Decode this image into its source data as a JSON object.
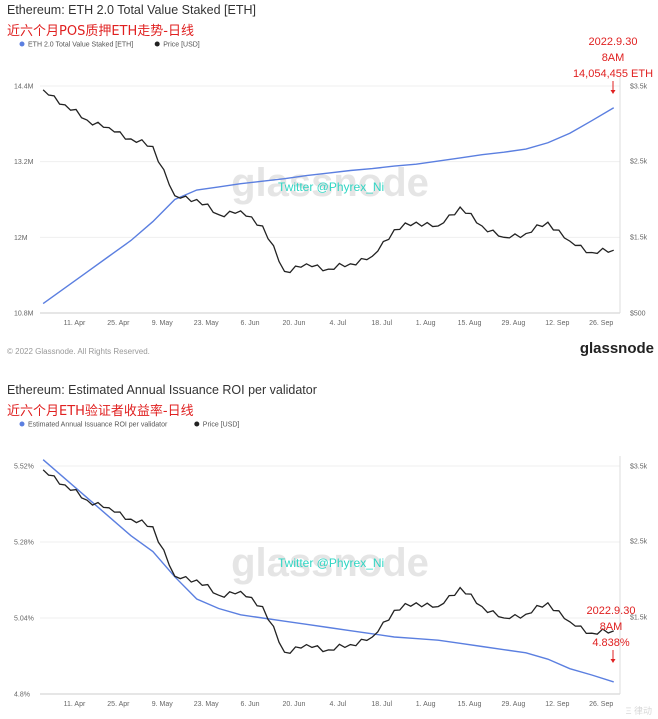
{
  "chart_data": [
    {
      "type": "line",
      "title": "Ethereum: ETH 2.0 Total Value Staked [ETH]",
      "subtitle": "近六个月POS质押ETH走势-日线",
      "x_ticks": [
        "11. Apr",
        "25. Apr",
        "9. May",
        "23. May",
        "6. Jun",
        "20. Jun",
        "4. Jul",
        "18. Jul",
        "1. Aug",
        "15. Aug",
        "29. Aug",
        "12. Sep",
        "26. Sep"
      ],
      "y_left_ticks": [
        "14.4M",
        "13.2M",
        "12M",
        "10.8M"
      ],
      "y_right_ticks": [
        "$3.5k",
        "$2.5k",
        "$1.5k",
        "$500"
      ],
      "ylim_left": [
        10800000,
        14400000
      ],
      "ylim_right": [
        500,
        3500
      ],
      "legend_position": "top-left",
      "grid": true,
      "colors": {
        "staked": "#5b7fe0",
        "price": "#222222",
        "annotation": "#e02020",
        "twitter": "#31d6c4"
      },
      "series": [
        {
          "name": "ETH 2.0 Total Value Staked [ETH]",
          "axis": "left",
          "x": [
            "2022-04-01",
            "2022-04-08",
            "2022-04-15",
            "2022-04-22",
            "2022-04-29",
            "2022-05-06",
            "2022-05-13",
            "2022-05-20",
            "2022-05-27",
            "2022-06-03",
            "2022-06-10",
            "2022-06-17",
            "2022-06-24",
            "2022-07-01",
            "2022-07-08",
            "2022-07-15",
            "2022-07-22",
            "2022-07-29",
            "2022-08-05",
            "2022-08-12",
            "2022-08-19",
            "2022-08-26",
            "2022-09-02",
            "2022-09-09",
            "2022-09-16",
            "2022-09-23",
            "2022-09-30"
          ],
          "values": [
            10950000,
            11200000,
            11450000,
            11700000,
            11950000,
            12250000,
            12600000,
            12750000,
            12800000,
            12850000,
            12890000,
            12930000,
            12980000,
            13020000,
            13060000,
            13090000,
            13130000,
            13160000,
            13210000,
            13260000,
            13310000,
            13350000,
            13400000,
            13500000,
            13650000,
            13850000,
            14054455
          ]
        },
        {
          "name": "Price [USD]",
          "axis": "right",
          "x": [
            "2022-04-01",
            "2022-04-08",
            "2022-04-15",
            "2022-04-22",
            "2022-04-29",
            "2022-05-06",
            "2022-05-13",
            "2022-05-20",
            "2022-05-27",
            "2022-06-03",
            "2022-06-10",
            "2022-06-17",
            "2022-06-24",
            "2022-07-01",
            "2022-07-08",
            "2022-07-15",
            "2022-07-22",
            "2022-07-29",
            "2022-08-05",
            "2022-08-12",
            "2022-08-19",
            "2022-08-26",
            "2022-09-02",
            "2022-09-09",
            "2022-09-16",
            "2022-09-23",
            "2022-09-30"
          ],
          "values": [
            3450,
            3250,
            3050,
            2950,
            2800,
            2700,
            2050,
            2000,
            1800,
            1850,
            1650,
            1050,
            1150,
            1080,
            1150,
            1250,
            1600,
            1700,
            1650,
            1900,
            1650,
            1500,
            1550,
            1700,
            1450,
            1300,
            1330
          ]
        }
      ],
      "annotations": [
        {
          "text": "2022.9.30",
          "x": "2022-09-30"
        },
        {
          "text": "8AM",
          "x": "2022-09-30"
        },
        {
          "text": "14,054,455 ETH",
          "x": "2022-09-30",
          "value": 14054455
        }
      ],
      "watermark": "glassnode",
      "twitter_text": "Twitter @Phyrex_Ni",
      "footer_copyright": "© 2022 Glassnode. All Rights Reserved.",
      "footer_logo": "glassnode"
    },
    {
      "type": "line",
      "title": "Ethereum: Estimated Annual Issuance ROI per validator",
      "subtitle": "近六个月ETH验证者收益率-日线",
      "x_ticks": [
        "11. Apr",
        "25. Apr",
        "9. May",
        "23. May",
        "6. Jun",
        "20. Jun",
        "4. Jul",
        "18. Jul",
        "1. Aug",
        "15. Aug",
        "29. Aug",
        "12. Sep",
        "26. Sep"
      ],
      "y_left_ticks": [
        "5.52%",
        "5.28%",
        "5.04%",
        "4.8%"
      ],
      "y_right_ticks": [
        "$3.5k",
        "$2.5k",
        "$1.5k"
      ],
      "ylim_left": [
        4.8,
        5.52
      ],
      "ylim_right": [
        500,
        3500
      ],
      "legend_position": "top-left",
      "grid": true,
      "colors": {
        "roi": "#5b7fe0",
        "price": "#222222",
        "annotation": "#e02020",
        "twitter": "#31d6c4"
      },
      "series": [
        {
          "name": "Estimated Annual Issuance ROI per validator",
          "axis": "left",
          "x": [
            "2022-04-01",
            "2022-04-08",
            "2022-04-15",
            "2022-04-22",
            "2022-04-29",
            "2022-05-06",
            "2022-05-13",
            "2022-05-20",
            "2022-05-27",
            "2022-06-03",
            "2022-06-10",
            "2022-06-17",
            "2022-06-24",
            "2022-07-01",
            "2022-07-08",
            "2022-07-15",
            "2022-07-22",
            "2022-07-29",
            "2022-08-05",
            "2022-08-12",
            "2022-08-19",
            "2022-08-26",
            "2022-09-02",
            "2022-09-09",
            "2022-09-16",
            "2022-09-23",
            "2022-09-30"
          ],
          "values": [
            5.54,
            5.48,
            5.42,
            5.36,
            5.3,
            5.25,
            5.17,
            5.1,
            5.07,
            5.05,
            5.04,
            5.03,
            5.02,
            5.01,
            5.0,
            4.99,
            4.98,
            4.975,
            4.97,
            4.96,
            4.95,
            4.94,
            4.93,
            4.91,
            4.88,
            4.86,
            4.838
          ]
        },
        {
          "name": "Price [USD]",
          "axis": "right",
          "x": [
            "2022-04-01",
            "2022-04-08",
            "2022-04-15",
            "2022-04-22",
            "2022-04-29",
            "2022-05-06",
            "2022-05-13",
            "2022-05-20",
            "2022-05-27",
            "2022-06-03",
            "2022-06-10",
            "2022-06-17",
            "2022-06-24",
            "2022-07-01",
            "2022-07-08",
            "2022-07-15",
            "2022-07-22",
            "2022-07-29",
            "2022-08-05",
            "2022-08-12",
            "2022-08-19",
            "2022-08-26",
            "2022-09-02",
            "2022-09-09",
            "2022-09-16",
            "2022-09-23",
            "2022-09-30"
          ],
          "values": [
            3450,
            3250,
            3050,
            2950,
            2800,
            2700,
            2050,
            2000,
            1800,
            1850,
            1650,
            1050,
            1150,
            1080,
            1150,
            1250,
            1600,
            1700,
            1650,
            1900,
            1650,
            1500,
            1550,
            1700,
            1450,
            1300,
            1330
          ]
        }
      ],
      "annotations": [
        {
          "text": "2022.9.30",
          "x": "2022-09-30"
        },
        {
          "text": "8AM",
          "x": "2022-09-30"
        },
        {
          "text": "4.838%",
          "x": "2022-09-30",
          "value": 4.838
        }
      ],
      "watermark": "glassnode",
      "twitter_text": "Twitter @Phyrex_Ni"
    }
  ],
  "corner_logo": "Ξ 律动"
}
